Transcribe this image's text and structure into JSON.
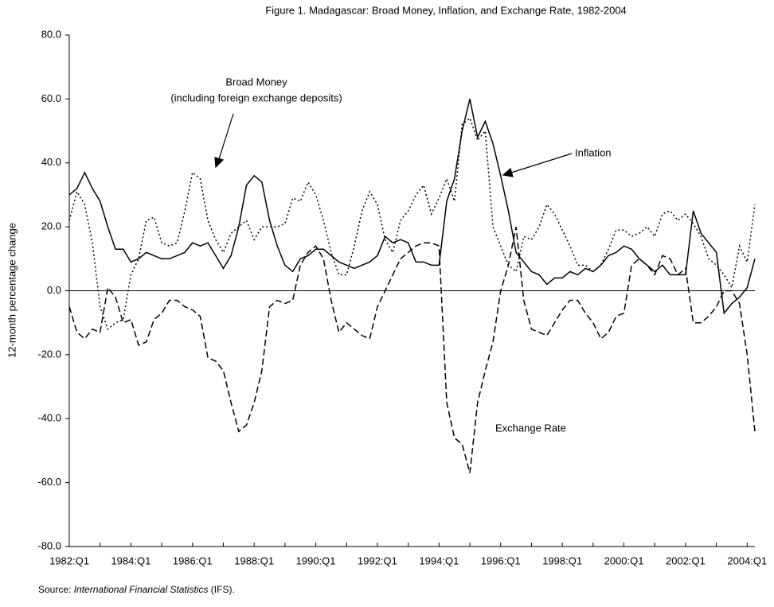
{
  "chart_data": {
    "type": "line",
    "title": "Figure 1. Madagascar: Broad Money, Inflation, and Exchange Rate, 1982-2004",
    "y_label": "12-month percentage change",
    "categories": [
      "1982:Q1",
      null,
      null,
      null,
      null,
      null,
      null,
      null,
      "1984:Q1",
      null,
      null,
      null,
      null,
      null,
      null,
      null,
      "1986:Q1",
      null,
      null,
      null,
      null,
      null,
      null,
      null,
      "1988:Q1",
      null,
      null,
      null,
      null,
      null,
      null,
      null,
      "1990:Q1",
      null,
      null,
      null,
      null,
      null,
      null,
      null,
      "1992:Q1",
      null,
      null,
      null,
      null,
      null,
      null,
      null,
      "1994:Q1",
      null,
      null,
      null,
      null,
      null,
      null,
      null,
      "1996:Q1",
      null,
      null,
      null,
      null,
      null,
      null,
      null,
      "1998:Q1",
      null,
      null,
      null,
      null,
      null,
      null,
      null,
      "2000:Q1",
      null,
      null,
      null,
      null,
      null,
      null,
      null,
      "2002:Q1",
      null,
      null,
      null,
      null,
      null,
      null,
      null,
      "2004:Q1",
      null
    ],
    "series": [
      {
        "name": "Broad Money",
        "color": "#000000",
        "style": "dotted",
        "values": [
          22,
          31,
          27,
          15,
          -5,
          -12,
          -10,
          -9,
          5,
          10,
          22,
          23,
          15,
          14,
          15,
          25,
          37,
          35,
          22,
          16,
          12,
          18,
          20,
          22,
          16,
          20,
          20,
          20,
          21,
          29,
          28,
          34,
          30,
          22,
          12,
          5,
          5,
          14,
          25,
          31,
          27,
          16,
          12,
          22,
          25,
          30,
          33,
          24,
          29,
          35,
          28,
          52,
          54,
          47,
          50,
          20,
          14,
          8,
          6,
          17,
          16,
          20,
          27,
          24,
          19,
          14,
          8,
          8,
          6,
          8,
          13,
          19,
          19,
          17,
          18,
          20,
          17,
          24,
          25,
          22,
          24,
          21,
          17,
          10,
          8,
          5,
          1,
          14,
          9,
          27
        ]
      },
      {
        "name": "Inflation",
        "color": "#000000",
        "style": "solid",
        "values": [
          30,
          32,
          37,
          32,
          28,
          20,
          13,
          13,
          9,
          10,
          12,
          11,
          10,
          10,
          11,
          12,
          15,
          14,
          15,
          11,
          7,
          11,
          20,
          33,
          36,
          34,
          22,
          14,
          8,
          6,
          10,
          11,
          13,
          13,
          11,
          9,
          8,
          7,
          8,
          9,
          11,
          17,
          15,
          16,
          15,
          9,
          9,
          8,
          8,
          28,
          35,
          50,
          60,
          48,
          53,
          46,
          36,
          25,
          12,
          9,
          6,
          5,
          2,
          4,
          4,
          6,
          5,
          7,
          6,
          8,
          11,
          12,
          14,
          13,
          10,
          8,
          6,
          8,
          5,
          5,
          5,
          25,
          18,
          15,
          12,
          -7,
          -4,
          -2,
          1,
          10
        ]
      },
      {
        "name": "Exchange Rate",
        "color": "#000000",
        "style": "dashed",
        "values": [
          -5,
          -13,
          -15,
          -12,
          -13,
          1,
          -2,
          -10,
          -9,
          -17,
          -16,
          -9,
          -7,
          -3,
          -3,
          -5,
          -6,
          -8,
          -21,
          -22,
          -25,
          -35,
          -44,
          -42,
          -35,
          -25,
          -5,
          -3,
          -4,
          -3,
          8,
          12,
          14,
          10,
          -3,
          -13,
          -10,
          -12,
          -14,
          -15,
          -5,
          0,
          5,
          10,
          12,
          14,
          15,
          15,
          14,
          -35,
          -46,
          -48,
          -57,
          -35,
          -25,
          -16,
          0,
          8,
          20,
          -3,
          -12,
          -13,
          -14,
          -10,
          -6,
          -3,
          -3,
          -7,
          -10,
          -15,
          -13,
          -8,
          -7,
          8,
          10,
          8,
          5,
          11,
          10,
          5,
          7,
          -10,
          -10,
          -8,
          -5,
          0,
          0,
          -4,
          -20,
          -44
        ]
      }
    ],
    "annotation": "(including foreign exchange deposits)",
    "source": {
      "prefix": "Source:",
      "italic": "International Financial Statistics",
      "suffix": "(IFS)."
    },
    "ylim": [
      -80,
      80
    ],
    "yticks": [
      {
        "value": -80,
        "label": "-80.0"
      },
      {
        "value": -60,
        "label": "-60.0"
      },
      {
        "value": -40,
        "label": "-40.0"
      },
      {
        "value": -20,
        "label": "-20.0"
      },
      {
        "value": 0,
        "label": "0.0"
      },
      {
        "value": 20,
        "label": "20.0"
      },
      {
        "value": 40,
        "label": "40.0"
      },
      {
        "value": 60,
        "label": "60.0"
      },
      {
        "value": 80,
        "label": "80.0"
      }
    ],
    "grid": false
  }
}
